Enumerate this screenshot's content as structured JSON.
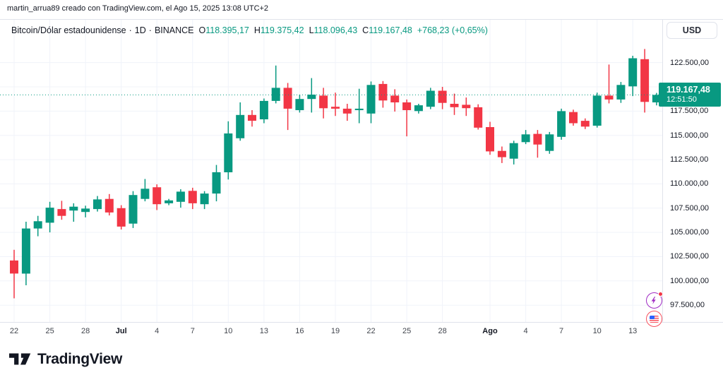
{
  "attribution": "martin_arrua89 creado con TradingView.com, el Ago 15, 2025 13:08 UTC+2",
  "legend": {
    "symbol": "Bitcoin/Dólar estadounidense",
    "separator": "·",
    "interval": "1D",
    "exchange": "BINANCE",
    "ohlc": [
      {
        "label": "O",
        "value": "118.395,17"
      },
      {
        "label": "H",
        "value": "119.375,42"
      },
      {
        "label": "L",
        "value": "118.096,43"
      },
      {
        "label": "C",
        "value": "119.167,48"
      }
    ],
    "change": "+768,23 (+0,65%)"
  },
  "price_axis": {
    "currency_button": "USD",
    "labels": [
      {
        "p": 122500,
        "text": "122.500,00"
      },
      {
        "p": 120000,
        "text": "120.000,00"
      },
      {
        "p": 117500,
        "text": "117.500,00"
      },
      {
        "p": 115000,
        "text": "115.000,00"
      },
      {
        "p": 112500,
        "text": "112.500,00"
      },
      {
        "p": 110000,
        "text": "110.000,00"
      },
      {
        "p": 107500,
        "text": "107.500,00"
      },
      {
        "p": 105000,
        "text": "105.000,00"
      },
      {
        "p": 102500,
        "text": "102.500,00"
      },
      {
        "p": 100000,
        "text": "100.000,00"
      },
      {
        "p": 97500,
        "text": "97.500,00"
      }
    ],
    "badge": {
      "price": "119.167,48",
      "countdown": "12:51:50"
    }
  },
  "footer": {
    "logo_text": "TradingView"
  },
  "colors": {
    "up": "#089981",
    "down": "#F23645",
    "grid": "#F0F3FA",
    "border": "#E0E3EB",
    "text": "#131722",
    "badge_bg": "#089981",
    "flash_purple": "#A02BC4",
    "flag_red": "#F7525F",
    "flag_blue": "#2962FF"
  },
  "chart_data": {
    "type": "candlestick",
    "title": "Bitcoin/Dólar estadounidense",
    "exchange": "BINANCE",
    "interval": "1D",
    "currency": "USD",
    "price_line": 119167.48,
    "ylim": [
      95800,
      126900
    ],
    "grid": true,
    "grid_prices": [
      122500,
      120000,
      117500,
      115000,
      112500,
      110000,
      107500,
      105000,
      102500,
      100000,
      97500
    ],
    "ticks": [
      {
        "i": 0,
        "label": "22"
      },
      {
        "i": 3,
        "label": "25"
      },
      {
        "i": 6,
        "label": "28"
      },
      {
        "i": 9,
        "label": "Jul",
        "bold": true
      },
      {
        "i": 12,
        "label": "4"
      },
      {
        "i": 15,
        "label": "7"
      },
      {
        "i": 18,
        "label": "10"
      },
      {
        "i": 21,
        "label": "13"
      },
      {
        "i": 24,
        "label": "16"
      },
      {
        "i": 27,
        "label": "19"
      },
      {
        "i": 30,
        "label": "22"
      },
      {
        "i": 33,
        "label": "25"
      },
      {
        "i": 36,
        "label": "28"
      },
      {
        "i": 40,
        "label": "Ago",
        "bold": true
      },
      {
        "i": 43,
        "label": "4"
      },
      {
        "i": 46,
        "label": "7"
      },
      {
        "i": 49,
        "label": "10"
      },
      {
        "i": 52,
        "label": "13"
      }
    ],
    "dates": [
      "22 jun",
      "23 jun",
      "24 jun",
      "25 jun",
      "26 jun",
      "27 jun",
      "28 jun",
      "29 jun",
      "30 jun",
      "1 jul",
      "2 jul",
      "3 jul",
      "4 jul",
      "5 jul",
      "6 jul",
      "7 jul",
      "8 jul",
      "9 jul",
      "10 jul",
      "11 jul",
      "12 jul",
      "13 jul",
      "14 jul",
      "15 jul",
      "16 jul",
      "17 jul",
      "18 jul",
      "19 jul",
      "20 jul",
      "21 jul",
      "22 jul",
      "23 jul",
      "24 jul",
      "25 jul",
      "26 jul",
      "27 jul",
      "28 jul",
      "29 jul",
      "30 jul",
      "31 jul",
      "1 ago",
      "2 ago",
      "3 ago",
      "4 ago",
      "5 ago",
      "6 ago",
      "7 ago",
      "8 ago",
      "9 ago",
      "10 ago",
      "11 ago",
      "12 ago",
      "13 ago",
      "14 ago",
      "15 ago"
    ],
    "ohlc": [
      [
        102100,
        103200,
        98200,
        100750
      ],
      [
        100750,
        106100,
        99550,
        105400
      ],
      [
        105400,
        106700,
        104600,
        106150
      ],
      [
        106000,
        108150,
        105000,
        107550
      ],
      [
        107400,
        108250,
        106300,
        106700
      ],
      [
        107250,
        108000,
        106100,
        107650
      ],
      [
        107100,
        107750,
        106550,
        107450
      ],
      [
        107400,
        108750,
        107150,
        108400
      ],
      [
        108450,
        108950,
        106750,
        107050
      ],
      [
        107500,
        107800,
        105300,
        105600
      ],
      [
        105900,
        109250,
        105450,
        108850
      ],
      [
        108450,
        110500,
        108200,
        109500
      ],
      [
        109650,
        109950,
        107300,
        107900
      ],
      [
        108000,
        108450,
        107800,
        108300
      ],
      [
        108150,
        109450,
        107550,
        109200
      ],
      [
        109280,
        109600,
        107400,
        108000
      ],
      [
        107900,
        109250,
        107400,
        109000
      ],
      [
        109000,
        111950,
        108200,
        111200
      ],
      [
        111200,
        116450,
        110450,
        115200
      ],
      [
        114700,
        118400,
        114450,
        117100
      ],
      [
        117100,
        117600,
        115900,
        116500
      ],
      [
        116650,
        118800,
        116250,
        118550
      ],
      [
        118550,
        122200,
        118300,
        119900
      ],
      [
        119900,
        120400,
        115550,
        117750
      ],
      [
        117600,
        119200,
        117350,
        118750
      ],
      [
        118750,
        120900,
        117350,
        119200
      ],
      [
        119100,
        119900,
        116750,
        117800
      ],
      [
        117950,
        119400,
        117000,
        117750
      ],
      [
        117750,
        118250,
        116500,
        117250
      ],
      [
        117600,
        119800,
        116250,
        117750
      ],
      [
        117250,
        120550,
        116250,
        120200
      ],
      [
        120300,
        120600,
        117850,
        118600
      ],
      [
        119100,
        119750,
        117450,
        118400
      ],
      [
        118400,
        118700,
        114900,
        117600
      ],
      [
        117500,
        118250,
        117250,
        118100
      ],
      [
        117950,
        119900,
        117700,
        119600
      ],
      [
        119600,
        120000,
        117700,
        118350
      ],
      [
        118250,
        119300,
        117100,
        117900
      ],
      [
        118150,
        118900,
        117000,
        117800
      ],
      [
        117900,
        118200,
        115600,
        115800
      ],
      [
        115850,
        116400,
        113000,
        113350
      ],
      [
        113400,
        113850,
        112150,
        112750
      ],
      [
        112600,
        114450,
        112000,
        114200
      ],
      [
        114300,
        115550,
        114100,
        115100
      ],
      [
        115150,
        115550,
        112700,
        114050
      ],
      [
        113400,
        115350,
        113100,
        115100
      ],
      [
        114850,
        117750,
        114550,
        117500
      ],
      [
        117400,
        117650,
        116000,
        116250
      ],
      [
        116500,
        116750,
        115650,
        115900
      ],
      [
        116000,
        119400,
        115800,
        119100
      ],
      [
        119100,
        122300,
        118300,
        118700
      ],
      [
        118700,
        120500,
        118350,
        120200
      ],
      [
        120050,
        123200,
        119050,
        122950
      ],
      [
        122850,
        123900,
        117350,
        118450
      ],
      [
        118395.17,
        119375.42,
        118096.43,
        119167.48
      ]
    ]
  }
}
